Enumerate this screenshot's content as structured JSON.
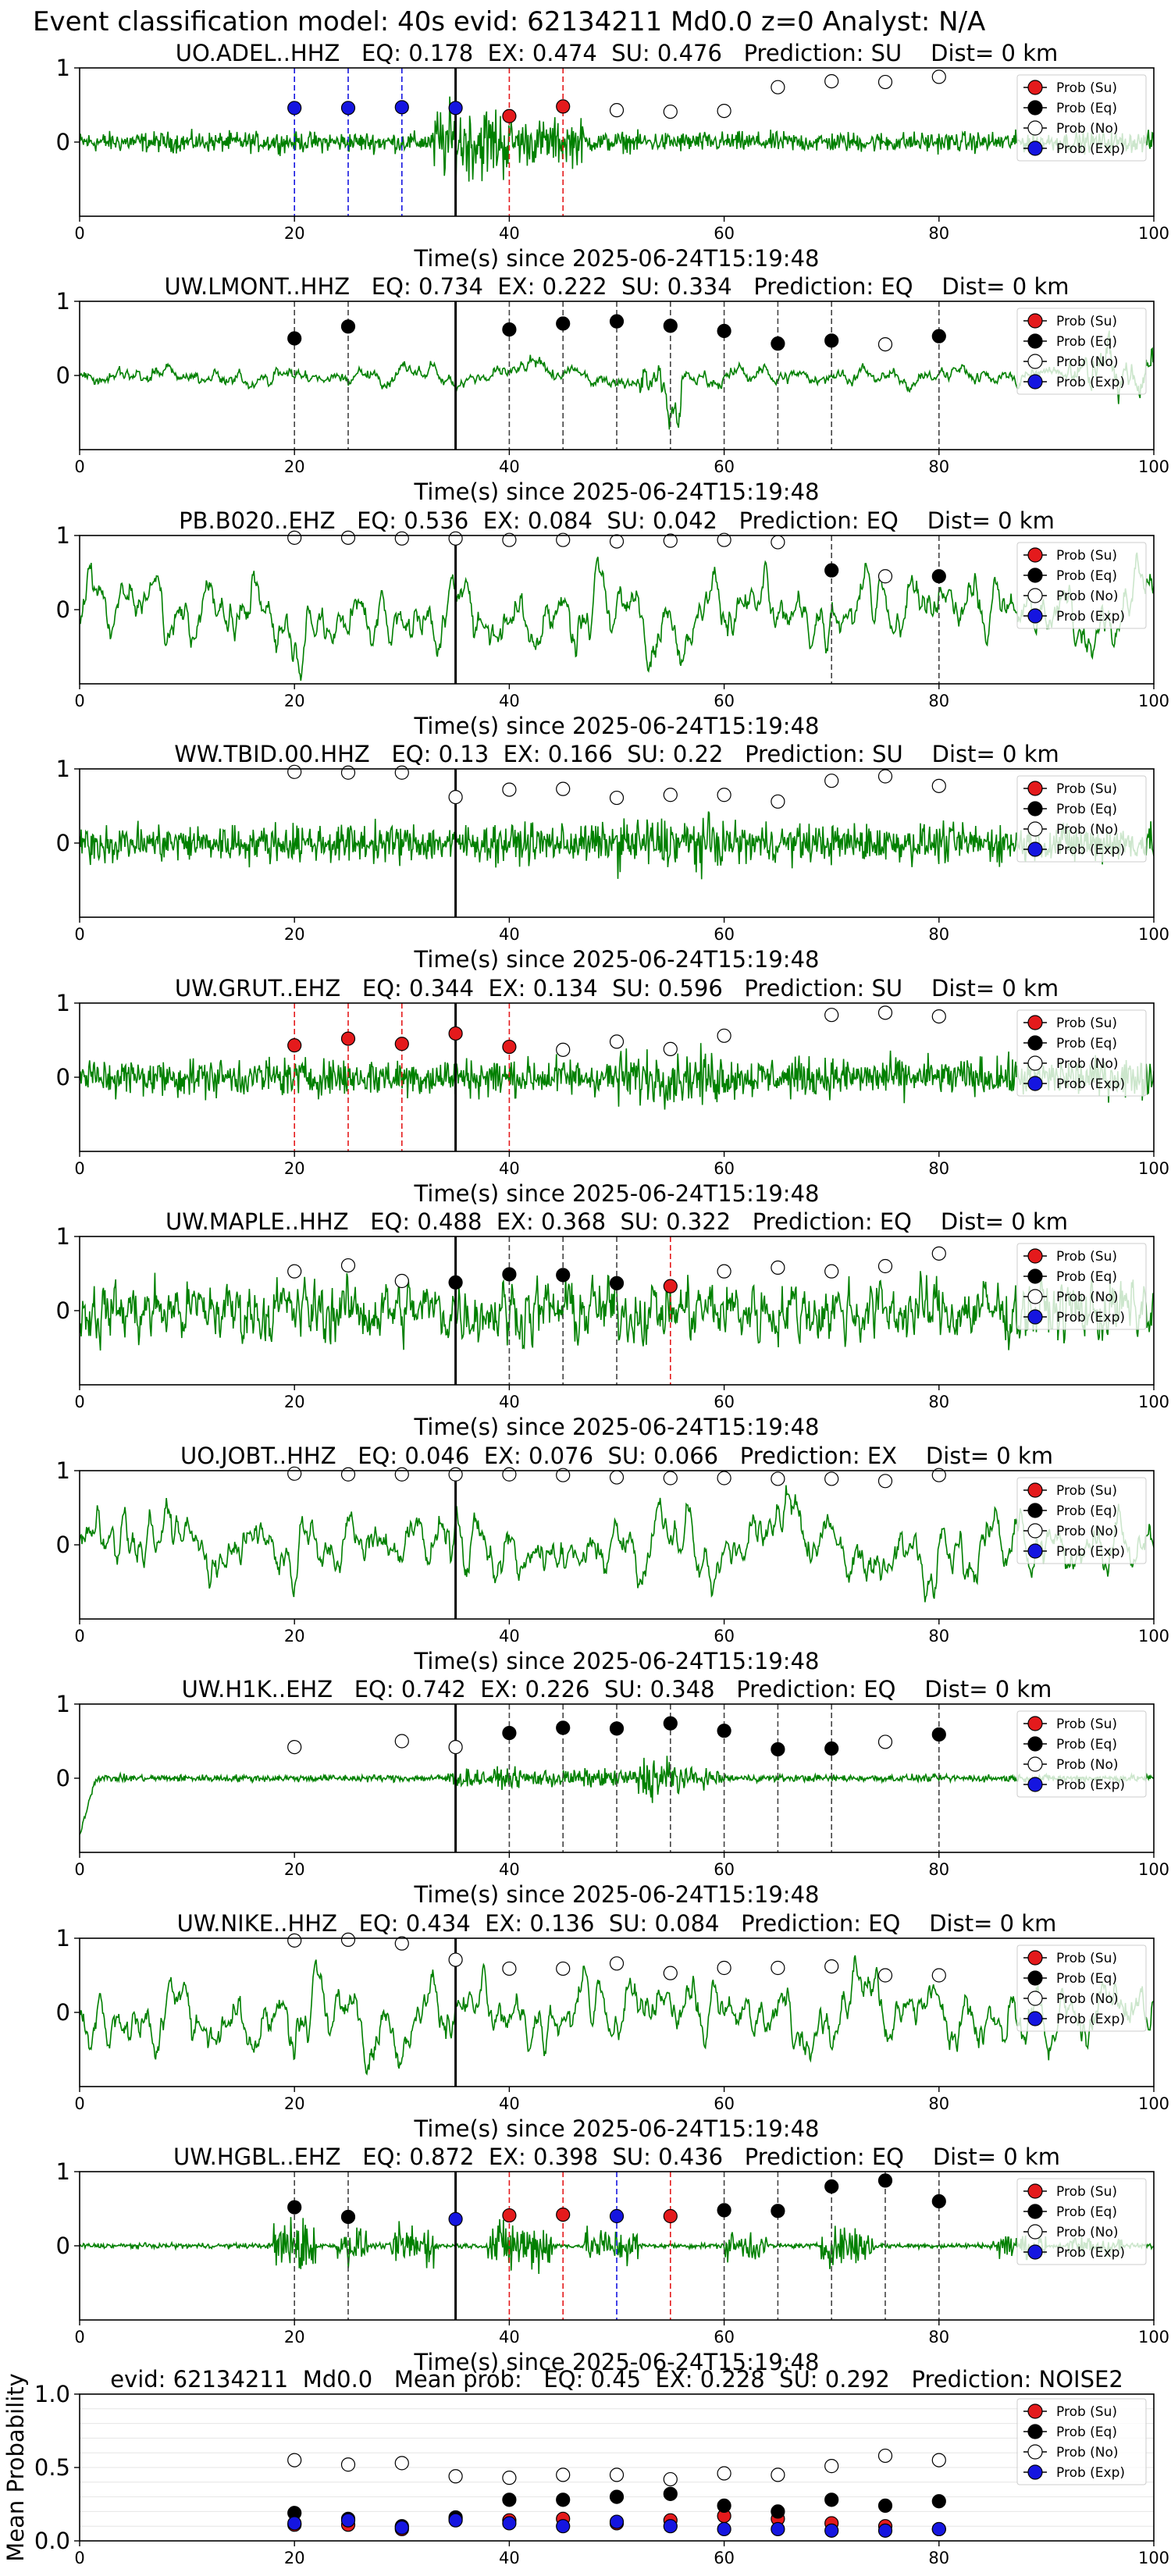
{
  "figure": {
    "title": "Event classification model: 40s evid: 62134211 Md0.0 z=0 Analyst: N/A"
  },
  "legend_labels": [
    "Prob (Su)",
    "Prob (Eq)",
    "Prob (No)",
    "Prob (Exp)"
  ],
  "colors": {
    "su": "#e41a1c",
    "eq": "#000000",
    "no": "#ffffff",
    "exp": "#1515e0",
    "waveform": "#008000",
    "axes": "#000000"
  },
  "chart_data": [
    {
      "type": "line",
      "title": "UO.ADEL..HHZ   EQ: 0.178  EX: 0.474  SU: 0.476   Prediction: SU    Dist= 0 km",
      "xlabel": "Time(s) since 2025-06-24T15:19:48",
      "xlim": [
        0,
        100
      ],
      "ylim": [
        -1,
        1
      ],
      "xticks": [
        0,
        20,
        40,
        60,
        80,
        100
      ],
      "yticks": [
        0,
        1
      ],
      "event_line_x": 35,
      "legend_position": "top-right",
      "waveform_style": "noisy-burst",
      "series": [
        {
          "name": "Prob (Su)",
          "x": [
            40,
            45
          ],
          "y": [
            0.35,
            0.48
          ]
        },
        {
          "name": "Prob (Eq)",
          "x": [],
          "y": []
        },
        {
          "name": "Prob (No)",
          "x": [
            50,
            55,
            60,
            65,
            70,
            75,
            80
          ],
          "y": [
            0.43,
            0.41,
            0.42,
            0.74,
            0.82,
            0.81,
            0.88
          ]
        },
        {
          "name": "Prob (Exp)",
          "x": [
            20,
            25,
            30,
            35
          ],
          "y": [
            0.46,
            0.46,
            0.47,
            0.46
          ]
        }
      ],
      "dashed_lines": [
        {
          "x": 20,
          "class": "exp"
        },
        {
          "x": 25,
          "class": "exp"
        },
        {
          "x": 30,
          "class": "exp"
        },
        {
          "x": 40,
          "class": "su"
        },
        {
          "x": 45,
          "class": "su"
        }
      ]
    },
    {
      "type": "line",
      "title": "UW.LMONT..HHZ   EQ: 0.734  EX: 0.222  SU: 0.334   Prediction: EQ    Dist= 0 km",
      "xlabel": "Time(s) since 2025-06-24T15:19:48",
      "xlim": [
        0,
        100
      ],
      "ylim": [
        -1,
        1
      ],
      "xticks": [
        0,
        20,
        40,
        60,
        80,
        100
      ],
      "yticks": [
        0,
        1
      ],
      "event_line_x": 35,
      "legend_position": "top-right",
      "waveform_style": "smooth-low",
      "series": [
        {
          "name": "Prob (Su)",
          "x": [],
          "y": []
        },
        {
          "name": "Prob (Eq)",
          "x": [
            20,
            25,
            40,
            45,
            50,
            55,
            60,
            65,
            70,
            80
          ],
          "y": [
            0.5,
            0.66,
            0.62,
            0.7,
            0.73,
            0.67,
            0.6,
            0.43,
            0.47,
            0.53
          ]
        },
        {
          "name": "Prob (No)",
          "x": [
            75
          ],
          "y": [
            0.42
          ]
        },
        {
          "name": "Prob (Exp)",
          "x": [],
          "y": []
        }
      ],
      "dashed_lines": [
        {
          "x": 20,
          "class": "eq"
        },
        {
          "x": 25,
          "class": "eq"
        },
        {
          "x": 40,
          "class": "eq"
        },
        {
          "x": 45,
          "class": "eq"
        },
        {
          "x": 50,
          "class": "eq"
        },
        {
          "x": 55,
          "class": "eq"
        },
        {
          "x": 60,
          "class": "eq"
        },
        {
          "x": 65,
          "class": "eq"
        },
        {
          "x": 70,
          "class": "eq"
        },
        {
          "x": 80,
          "class": "eq"
        }
      ]
    },
    {
      "type": "line",
      "title": "PB.B020..EHZ   EQ: 0.536  EX: 0.084  SU: 0.042   Prediction: EQ    Dist= 0 km",
      "xlabel": "Time(s) since 2025-06-24T15:19:48",
      "xlim": [
        0,
        100
      ],
      "ylim": [
        -1,
        1
      ],
      "xticks": [
        0,
        20,
        40,
        60,
        80,
        100
      ],
      "yticks": [
        0,
        1
      ],
      "event_line_x": 35,
      "legend_position": "top-right",
      "waveform_style": "smooth-large",
      "series": [
        {
          "name": "Prob (Su)",
          "x": [],
          "y": []
        },
        {
          "name": "Prob (Eq)",
          "x": [
            70,
            80
          ],
          "y": [
            0.53,
            0.45
          ]
        },
        {
          "name": "Prob (No)",
          "x": [
            20,
            25,
            30,
            35,
            40,
            45,
            50,
            55,
            60,
            65,
            75
          ],
          "y": [
            0.97,
            0.97,
            0.96,
            0.96,
            0.94,
            0.94,
            0.92,
            0.93,
            0.94,
            0.91,
            0.45
          ]
        },
        {
          "name": "Prob (Exp)",
          "x": [],
          "y": []
        }
      ],
      "dashed_lines": [
        {
          "x": 70,
          "class": "eq"
        },
        {
          "x": 80,
          "class": "eq"
        }
      ]
    },
    {
      "type": "line",
      "title": "WW.TBID.00.HHZ   EQ: 0.13  EX: 0.166  SU: 0.22   Prediction: SU    Dist= 0 km",
      "xlabel": "Time(s) since 2025-06-24T15:19:48",
      "xlim": [
        0,
        100
      ],
      "ylim": [
        -1,
        1
      ],
      "xticks": [
        0,
        20,
        40,
        60,
        80,
        100
      ],
      "yticks": [
        0,
        1
      ],
      "event_line_x": 35,
      "legend_position": "top-right",
      "waveform_style": "noisy",
      "series": [
        {
          "name": "Prob (Su)",
          "x": [],
          "y": []
        },
        {
          "name": "Prob (Eq)",
          "x": [],
          "y": []
        },
        {
          "name": "Prob (No)",
          "x": [
            20,
            25,
            30,
            35,
            40,
            45,
            50,
            55,
            60,
            65,
            70,
            75,
            80
          ],
          "y": [
            0.96,
            0.95,
            0.95,
            0.62,
            0.72,
            0.73,
            0.61,
            0.65,
            0.65,
            0.56,
            0.84,
            0.9,
            0.77
          ]
        },
        {
          "name": "Prob (Exp)",
          "x": [],
          "y": []
        }
      ],
      "dashed_lines": []
    },
    {
      "type": "line",
      "title": "UW.GRUT..EHZ   EQ: 0.344  EX: 0.134  SU: 0.596   Prediction: SU    Dist= 0 km",
      "xlabel": "Time(s) since 2025-06-24T15:19:48",
      "xlim": [
        0,
        100
      ],
      "ylim": [
        -1,
        1
      ],
      "xticks": [
        0,
        20,
        40,
        60,
        80,
        100
      ],
      "yticks": [
        0,
        1
      ],
      "event_line_x": 35,
      "legend_position": "top-right",
      "waveform_style": "noisy",
      "series": [
        {
          "name": "Prob (Su)",
          "x": [
            20,
            25,
            30,
            35,
            40
          ],
          "y": [
            0.43,
            0.52,
            0.45,
            0.59,
            0.41
          ]
        },
        {
          "name": "Prob (Eq)",
          "x": [],
          "y": []
        },
        {
          "name": "Prob (No)",
          "x": [
            45,
            50,
            55,
            60,
            70,
            75,
            80
          ],
          "y": [
            0.37,
            0.48,
            0.38,
            0.56,
            0.84,
            0.87,
            0.82
          ]
        },
        {
          "name": "Prob (Exp)",
          "x": [],
          "y": []
        }
      ],
      "dashed_lines": [
        {
          "x": 20,
          "class": "su"
        },
        {
          "x": 25,
          "class": "su"
        },
        {
          "x": 30,
          "class": "su"
        },
        {
          "x": 40,
          "class": "su"
        }
      ]
    },
    {
      "type": "line",
      "title": "UW.MAPLE..HHZ   EQ: 0.488  EX: 0.368  SU: 0.322   Prediction: EQ    Dist= 0 km",
      "xlabel": "Time(s) since 2025-06-24T15:19:48",
      "xlim": [
        0,
        100
      ],
      "ylim": [
        -1,
        1
      ],
      "xticks": [
        0,
        20,
        40,
        60,
        80,
        100
      ],
      "yticks": [
        0,
        1
      ],
      "event_line_x": 35,
      "legend_position": "top-right",
      "waveform_style": "noisy-large",
      "series": [
        {
          "name": "Prob (Su)",
          "x": [
            55
          ],
          "y": [
            0.33
          ]
        },
        {
          "name": "Prob (Eq)",
          "x": [
            35,
            40,
            45,
            50
          ],
          "y": [
            0.38,
            0.49,
            0.48,
            0.37
          ]
        },
        {
          "name": "Prob (No)",
          "x": [
            20,
            25,
            30,
            60,
            65,
            70,
            75,
            80
          ],
          "y": [
            0.53,
            0.61,
            0.4,
            0.53,
            0.58,
            0.53,
            0.6,
            0.77
          ]
        },
        {
          "name": "Prob (Exp)",
          "x": [],
          "y": []
        }
      ],
      "dashed_lines": [
        {
          "x": 40,
          "class": "eq"
        },
        {
          "x": 45,
          "class": "eq"
        },
        {
          "x": 50,
          "class": "eq"
        },
        {
          "x": 55,
          "class": "su"
        }
      ]
    },
    {
      "type": "line",
      "title": "UO.JOBT..HHZ   EQ: 0.046  EX: 0.076  SU: 0.066   Prediction: EX    Dist= 0 km",
      "xlabel": "Time(s) since 2025-06-24T15:19:48",
      "xlim": [
        0,
        100
      ],
      "ylim": [
        -1,
        1
      ],
      "xticks": [
        0,
        20,
        40,
        60,
        80,
        100
      ],
      "yticks": [
        0,
        1
      ],
      "event_line_x": 35,
      "legend_position": "top-right",
      "waveform_style": "smooth-large",
      "series": [
        {
          "name": "Prob (Su)",
          "x": [],
          "y": []
        },
        {
          "name": "Prob (Eq)",
          "x": [],
          "y": []
        },
        {
          "name": "Prob (No)",
          "x": [
            20,
            25,
            30,
            35,
            40,
            45,
            50,
            55,
            60,
            65,
            70,
            75,
            80
          ],
          "y": [
            0.96,
            0.95,
            0.95,
            0.95,
            0.95,
            0.94,
            0.91,
            0.9,
            0.9,
            0.89,
            0.89,
            0.86,
            0.94
          ]
        },
        {
          "name": "Prob (Exp)",
          "x": [],
          "y": []
        }
      ],
      "dashed_lines": []
    },
    {
      "type": "line",
      "title": "UW.H1K..EHZ   EQ: 0.742  EX: 0.226  SU: 0.348   Prediction: EQ    Dist= 0 km",
      "xlabel": "Time(s) since 2025-06-24T15:19:48",
      "xlim": [
        0,
        100
      ],
      "ylim": [
        -1,
        1
      ],
      "xticks": [
        0,
        20,
        40,
        60,
        80,
        100
      ],
      "yticks": [
        0,
        1
      ],
      "event_line_x": 35,
      "legend_position": "top-right",
      "waveform_style": "quiet-burst",
      "series": [
        {
          "name": "Prob (Su)",
          "x": [],
          "y": []
        },
        {
          "name": "Prob (Eq)",
          "x": [
            40,
            45,
            50,
            55,
            60,
            65,
            70,
            80
          ],
          "y": [
            0.61,
            0.68,
            0.67,
            0.74,
            0.64,
            0.39,
            0.4,
            0.59
          ]
        },
        {
          "name": "Prob (No)",
          "x": [
            20,
            30,
            35,
            75
          ],
          "y": [
            0.42,
            0.5,
            0.42,
            0.49
          ]
        },
        {
          "name": "Prob (Exp)",
          "x": [],
          "y": []
        }
      ],
      "dashed_lines": [
        {
          "x": 40,
          "class": "eq"
        },
        {
          "x": 45,
          "class": "eq"
        },
        {
          "x": 50,
          "class": "eq"
        },
        {
          "x": 55,
          "class": "eq"
        },
        {
          "x": 60,
          "class": "eq"
        },
        {
          "x": 65,
          "class": "eq"
        },
        {
          "x": 70,
          "class": "eq"
        },
        {
          "x": 80,
          "class": "eq"
        }
      ]
    },
    {
      "type": "line",
      "title": "UW.NIKE..HHZ   EQ: 0.434  EX: 0.136  SU: 0.084   Prediction: EQ    Dist= 0 km",
      "xlabel": "Time(s) since 2025-06-24T15:19:48",
      "xlim": [
        0,
        100
      ],
      "ylim": [
        -1,
        1
      ],
      "xticks": [
        0,
        20,
        40,
        60,
        80,
        100
      ],
      "yticks": [
        0,
        1
      ],
      "event_line_x": 35,
      "legend_position": "top-right",
      "waveform_style": "smooth-large",
      "series": [
        {
          "name": "Prob (Su)",
          "x": [],
          "y": []
        },
        {
          "name": "Prob (Eq)",
          "x": [],
          "y": []
        },
        {
          "name": "Prob (No)",
          "x": [
            20,
            25,
            30,
            35,
            40,
            45,
            50,
            55,
            60,
            65,
            70,
            75,
            80
          ],
          "y": [
            0.97,
            0.98,
            0.93,
            0.71,
            0.59,
            0.59,
            0.66,
            0.53,
            0.6,
            0.6,
            0.62,
            0.5,
            0.5
          ]
        },
        {
          "name": "Prob (Exp)",
          "x": [],
          "y": []
        }
      ],
      "dashed_lines": []
    },
    {
      "type": "line",
      "title": "UW.HGBL..EHZ   EQ: 0.872  EX: 0.398  SU: 0.436   Prediction: EQ    Dist= 0 km",
      "xlabel": "Time(s) since 2025-06-24T15:19:48",
      "xlim": [
        0,
        100
      ],
      "ylim": [
        -1,
        1
      ],
      "xticks": [
        0,
        20,
        40,
        60,
        80,
        100
      ],
      "yticks": [
        0,
        1
      ],
      "event_line_x": 35,
      "legend_position": "top-right",
      "waveform_style": "quiet-bursts",
      "series": [
        {
          "name": "Prob (Su)",
          "x": [
            40,
            45,
            55
          ],
          "y": [
            0.41,
            0.42,
            0.4
          ]
        },
        {
          "name": "Prob (Eq)",
          "x": [
            20,
            25,
            60,
            65,
            70,
            75,
            80
          ],
          "y": [
            0.52,
            0.39,
            0.48,
            0.47,
            0.8,
            0.88,
            0.6
          ]
        },
        {
          "name": "Prob (No)",
          "x": [],
          "y": []
        },
        {
          "name": "Prob (Exp)",
          "x": [
            35,
            50
          ],
          "y": [
            0.36,
            0.4
          ]
        }
      ],
      "dashed_lines": [
        {
          "x": 20,
          "class": "eq"
        },
        {
          "x": 25,
          "class": "eq"
        },
        {
          "x": 40,
          "class": "su"
        },
        {
          "x": 45,
          "class": "su"
        },
        {
          "x": 50,
          "class": "exp"
        },
        {
          "x": 55,
          "class": "su"
        },
        {
          "x": 60,
          "class": "eq"
        },
        {
          "x": 65,
          "class": "eq"
        },
        {
          "x": 70,
          "class": "eq"
        },
        {
          "x": 75,
          "class": "eq"
        },
        {
          "x": 80,
          "class": "eq"
        }
      ]
    },
    {
      "type": "scatter",
      "title": "evid: 62134211  Md0.0   Mean prob:   EQ: 0.45  EX: 0.228  SU: 0.292   Prediction: NOISE2",
      "xlabel": "",
      "ylabel": "Mean Probability",
      "xlim": [
        0,
        100
      ],
      "ylim": [
        0,
        1
      ],
      "xticks": [
        0,
        20,
        40,
        60,
        80,
        100
      ],
      "yticks": [
        0.0,
        0.5,
        1.0
      ],
      "grid": true,
      "legend_position": "top-right",
      "series": [
        {
          "name": "Prob (Su)",
          "x": [
            20,
            25,
            30,
            35,
            40,
            45,
            50,
            55,
            60,
            65,
            70,
            75,
            80
          ],
          "y": [
            0.11,
            0.11,
            0.08,
            0.15,
            0.14,
            0.15,
            0.12,
            0.14,
            0.17,
            0.15,
            0.12,
            0.1,
            0.08
          ]
        },
        {
          "name": "Prob (Eq)",
          "x": [
            20,
            25,
            30,
            35,
            40,
            45,
            50,
            55,
            60,
            65,
            70,
            75,
            80
          ],
          "y": [
            0.19,
            0.15,
            0.1,
            0.16,
            0.28,
            0.28,
            0.3,
            0.32,
            0.24,
            0.2,
            0.28,
            0.24,
            0.27
          ]
        },
        {
          "name": "Prob (No)",
          "x": [
            20,
            25,
            30,
            35,
            40,
            45,
            50,
            55,
            60,
            65,
            70,
            75,
            80
          ],
          "y": [
            0.55,
            0.52,
            0.53,
            0.44,
            0.43,
            0.45,
            0.45,
            0.42,
            0.46,
            0.45,
            0.51,
            0.58,
            0.55
          ]
        },
        {
          "name": "Prob (Exp)",
          "x": [
            20,
            25,
            30,
            35,
            40,
            45,
            50,
            55,
            60,
            65,
            70,
            75,
            80
          ],
          "y": [
            0.12,
            0.14,
            0.09,
            0.14,
            0.12,
            0.1,
            0.13,
            0.1,
            0.08,
            0.08,
            0.07,
            0.07,
            0.08
          ]
        }
      ]
    }
  ]
}
